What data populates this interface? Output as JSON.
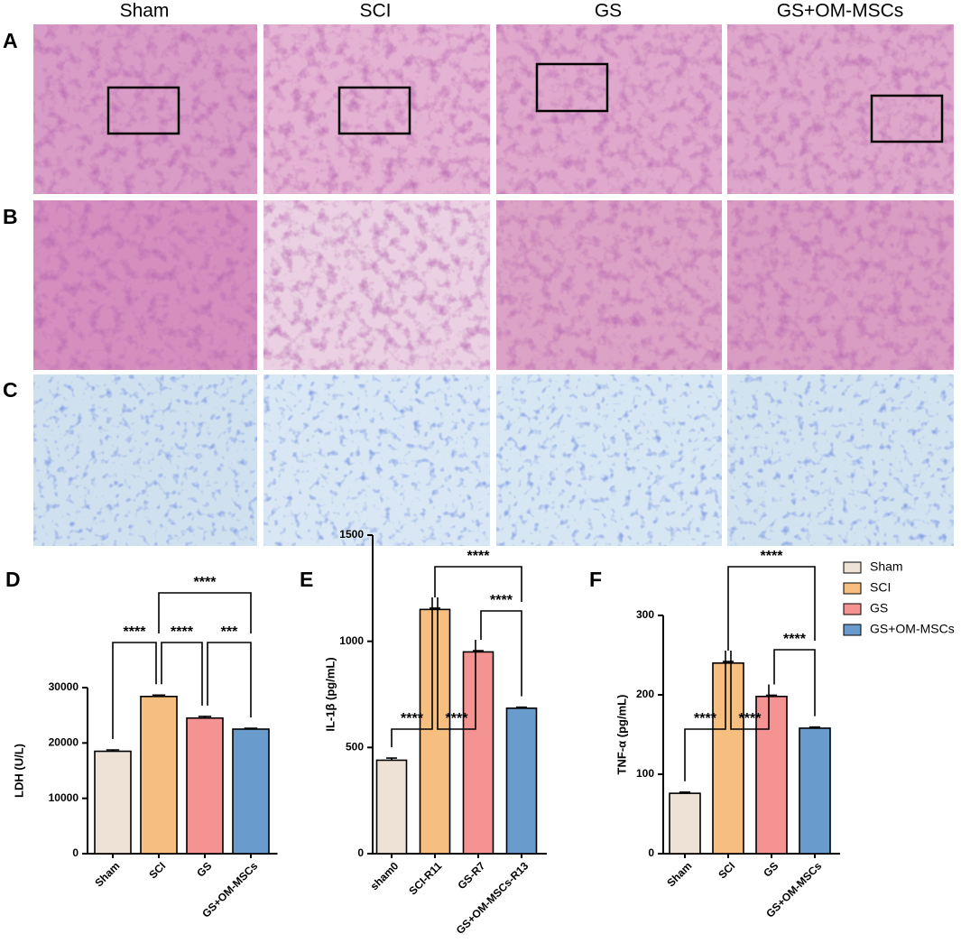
{
  "figure": {
    "columns": [
      "Sham",
      "SCI",
      "GS",
      "GS+OM-MSCs"
    ],
    "rows": [
      "A",
      "B",
      "C"
    ]
  },
  "legend": [
    {
      "name": "Sham",
      "color": "#eee1d6"
    },
    {
      "name": "SCI",
      "color": "#f6bf80"
    },
    {
      "name": "GS",
      "color": "#f59292"
    },
    {
      "name": "GS+OM-MSCs",
      "color": "#6a9bcd"
    }
  ],
  "chart_data": [
    {
      "type": "bar",
      "panel": "D",
      "ylabel": "LDH (U/L)",
      "categories": [
        "Sham",
        "SCI",
        "GS",
        "GS+OM-MSCs"
      ],
      "values": [
        18500,
        28400,
        24500,
        22500
      ],
      "errors": [
        250,
        250,
        300,
        150
      ],
      "ylim": [
        0,
        30000
      ],
      "yticks": [
        0,
        10000,
        20000,
        30000
      ],
      "annotations": [
        {
          "text": "****",
          "between": [
            "Sham",
            "SCI"
          ]
        },
        {
          "text": "****",
          "between": [
            "SCI",
            "GS"
          ]
        },
        {
          "text": "***",
          "between": [
            "GS",
            "GS+OM-MSCs"
          ]
        },
        {
          "text": "****",
          "between": [
            "SCI",
            "GS+OM-MSCs"
          ]
        }
      ]
    },
    {
      "type": "bar",
      "panel": "E",
      "ylabel": "IL-1β (pg/mL)",
      "categories": [
        "sham0",
        "SCI-R11",
        "GS-R7",
        "GS+OM-MSCs-R13"
      ],
      "values": [
        440,
        1150,
        950,
        685
      ],
      "errors": [
        10,
        6,
        6,
        5
      ],
      "ylim": [
        0,
        1500
      ],
      "yticks": [
        0,
        500,
        1000,
        1500
      ],
      "annotations": [
        {
          "text": "****",
          "between": [
            "sham0",
            "SCI-R11"
          ]
        },
        {
          "text": "****",
          "between": [
            "SCI-R11",
            "GS-R7"
          ]
        },
        {
          "text": "****",
          "between": [
            "GS-R7",
            "GS+OM-MSCs-R13"
          ]
        },
        {
          "text": "****",
          "between": [
            "SCI-R11",
            "GS+OM-MSCs-R13"
          ]
        }
      ]
    },
    {
      "type": "bar",
      "panel": "F",
      "ylabel": "TNF-α (pg/mL)",
      "categories": [
        "Sham",
        "SCI",
        "GS",
        "GS+OM-MSCs"
      ],
      "values": [
        76,
        240,
        198,
        158
      ],
      "errors": [
        1.5,
        2,
        1.5,
        1.5
      ],
      "ylim": [
        0,
        300
      ],
      "yticks": [
        0,
        100,
        200,
        300
      ],
      "annotations": [
        {
          "text": "****",
          "between": [
            "Sham",
            "SCI"
          ]
        },
        {
          "text": "****",
          "between": [
            "SCI",
            "GS"
          ]
        },
        {
          "text": "****",
          "between": [
            "GS",
            "GS+OM-MSCs"
          ]
        },
        {
          "text": "****",
          "between": [
            "SCI",
            "GS+OM-MSCs"
          ]
        }
      ]
    }
  ]
}
